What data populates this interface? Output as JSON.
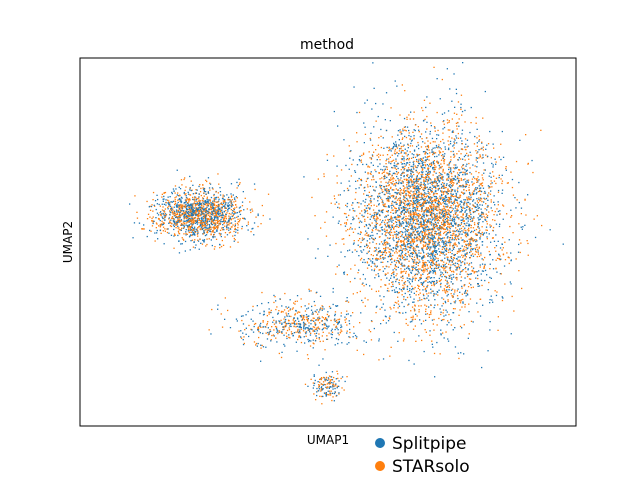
{
  "chart_data": {
    "type": "scatter",
    "title": "method",
    "xlabel": "UMAP1",
    "ylabel": "UMAP2",
    "xticks": [],
    "yticks": [],
    "grid": false,
    "legend_position": "bottom-right, outside plot",
    "xlim": [
      -10,
      10
    ],
    "ylim": [
      -8,
      8
    ],
    "series": [
      {
        "name": "Splitpipe",
        "color": "#1f77b4"
      },
      {
        "name": "STARsolo",
        "color": "#ff7f0e"
      }
    ],
    "clusters": [
      {
        "label": "left cluster",
        "center": [
          -5.2,
          1.2
        ],
        "spread": [
          1.8,
          1.1
        ],
        "share": 0.22
      },
      {
        "label": "right cluster",
        "center": [
          4.0,
          1.0
        ],
        "spread": [
          2.9,
          4.0
        ],
        "share": 0.68
      },
      {
        "label": "bridge",
        "center": [
          -1.2,
          -3.6
        ],
        "spread": [
          2.4,
          1.0
        ],
        "share": 0.08
      },
      {
        "label": "bottom tail",
        "center": [
          0.0,
          -6.2
        ],
        "spread": [
          0.6,
          0.6
        ],
        "share": 0.02
      }
    ]
  }
}
